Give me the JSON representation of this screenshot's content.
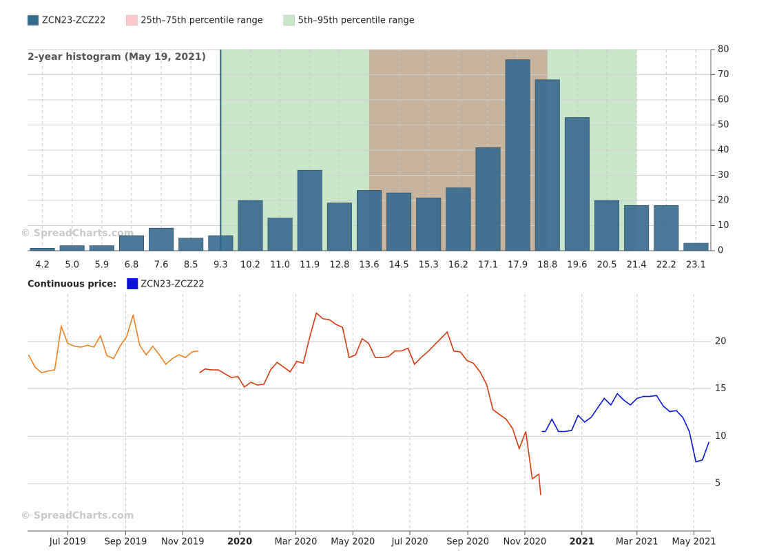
{
  "chart_data": [
    {
      "type": "bar",
      "title": "2-year histogram (May 19, 2021)",
      "watermark": "© SpreadCharts.com",
      "categories": [
        "4.2",
        "5.0",
        "5.9",
        "6.8",
        "7.6",
        "8.5",
        "9.3",
        "10.2",
        "11.0",
        "11.9",
        "12.8",
        "13.6",
        "14.5",
        "15.3",
        "16.2",
        "17.1",
        "17.9",
        "18.8",
        "19.6",
        "20.5",
        "21.4",
        "22.2",
        "23.1"
      ],
      "series": [
        {
          "name": "ZCN23-ZCZ22",
          "color": "#35698e",
          "values": [
            1,
            2,
            2,
            6,
            9,
            5,
            6,
            20,
            13,
            32,
            19,
            24,
            23,
            21,
            25,
            41,
            76,
            68,
            53,
            20,
            18,
            18,
            3
          ]
        }
      ],
      "bands": [
        {
          "name": "25th–75th percentile range",
          "color": "#ffc8c8",
          "from": 13.6,
          "to": 18.8
        },
        {
          "name": "5th–95th percentile range",
          "color": "#c8e6c8",
          "from": 9.3,
          "to": 21.4
        }
      ],
      "marker": 9.3,
      "ylim": [
        0,
        80
      ],
      "yticks": [
        0,
        10,
        20,
        30,
        40,
        50,
        60,
        70,
        80
      ],
      "grid": true
    },
    {
      "type": "line",
      "legend_title": "Continuous price:",
      "watermark": "© SpreadCharts.com",
      "xlim": [
        "2019-05-19",
        "2021-05-19"
      ],
      "xticks": [
        {
          "value": "2019-07",
          "label": "Jul 2019"
        },
        {
          "value": "2019-09",
          "label": "Sep 2019"
        },
        {
          "value": "2019-11",
          "label": "Nov 2019"
        },
        {
          "value": "2020-01",
          "label": "2020"
        },
        {
          "value": "2020-03",
          "label": "Mar 2020"
        },
        {
          "value": "2020-05",
          "label": "May 2020"
        },
        {
          "value": "2020-07",
          "label": "Jul 2020"
        },
        {
          "value": "2020-09",
          "label": "Sep 2020"
        },
        {
          "value": "2020-11",
          "label": "Nov 2020"
        },
        {
          "value": "2021-01",
          "label": "2021"
        },
        {
          "value": "2021-03",
          "label": "Mar 2021"
        },
        {
          "value": "2021-05",
          "label": "May 2021"
        }
      ],
      "ylim": [
        0,
        25
      ],
      "yticks": [
        5,
        10,
        15,
        20
      ],
      "grid": true,
      "series": [
        {
          "color": "#f07f1e",
          "x": [
            "2019-05-20",
            "2019-05-27",
            "2019-06-03",
            "2019-06-10",
            "2019-06-17",
            "2019-06-24",
            "2019-07-01",
            "2019-07-08",
            "2019-07-15",
            "2019-07-22",
            "2019-07-29",
            "2019-08-05",
            "2019-08-12",
            "2019-08-19",
            "2019-08-26",
            "2019-09-02",
            "2019-09-09",
            "2019-09-16",
            "2019-09-23",
            "2019-09-30",
            "2019-10-07",
            "2019-10-14",
            "2019-10-21",
            "2019-10-28",
            "2019-11-04",
            "2019-11-11",
            "2019-11-18"
          ],
          "values": [
            18.6,
            17.3,
            16.7,
            16.9,
            17.0,
            21.6,
            19.8,
            19.5,
            19.4,
            19.6,
            19.4,
            20.6,
            18.5,
            18.2,
            19.5,
            20.5,
            22.8,
            19.6,
            18.6,
            19.5,
            18.6,
            17.6,
            18.2,
            18.6,
            18.3,
            18.9,
            19.0
          ]
        },
        {
          "color": "#d93a0c",
          "x": [
            "2019-11-19",
            "2019-11-25",
            "2019-12-02",
            "2019-12-09",
            "2019-12-16",
            "2019-12-23",
            "2019-12-30",
            "2020-01-06",
            "2020-01-13",
            "2020-01-20",
            "2020-01-27",
            "2020-02-03",
            "2020-02-10",
            "2020-02-17",
            "2020-02-24",
            "2020-03-02",
            "2020-03-09",
            "2020-03-16",
            "2020-03-23",
            "2020-03-30",
            "2020-04-06",
            "2020-04-13",
            "2020-04-20",
            "2020-04-27",
            "2020-05-04",
            "2020-05-11",
            "2020-05-18",
            "2020-05-25",
            "2020-06-01",
            "2020-06-08",
            "2020-06-15",
            "2020-06-22",
            "2020-06-29",
            "2020-07-06",
            "2020-07-13",
            "2020-07-20",
            "2020-07-27",
            "2020-08-03",
            "2020-08-10",
            "2020-08-17",
            "2020-08-24",
            "2020-08-31",
            "2020-09-07",
            "2020-09-14",
            "2020-09-21",
            "2020-09-28",
            "2020-10-05",
            "2020-10-12",
            "2020-10-19",
            "2020-10-26",
            "2020-11-02",
            "2020-11-09",
            "2020-11-16",
            "2020-11-18"
          ],
          "values": [
            16.7,
            17.1,
            17.0,
            17.0,
            16.6,
            16.2,
            16.3,
            15.2,
            15.7,
            15.4,
            15.5,
            17.0,
            17.8,
            17.3,
            16.8,
            17.9,
            17.7,
            20.5,
            23.0,
            22.4,
            22.3,
            21.8,
            21.5,
            18.3,
            18.6,
            20.3,
            19.8,
            18.3,
            18.3,
            18.4,
            19.0,
            19.0,
            19.3,
            17.6,
            18.3,
            18.9,
            19.6,
            20.3,
            21.0,
            19.0,
            18.9,
            18.0,
            17.7,
            16.8,
            15.5,
            12.8,
            12.3,
            11.8,
            10.8,
            8.7,
            10.5,
            5.5,
            6.0,
            3.8
          ]
        },
        {
          "name": "ZCN23-ZCZ22",
          "color": "#0a14d9",
          "x": [
            "2020-11-19",
            "2020-11-23",
            "2020-11-30",
            "2020-12-07",
            "2020-12-14",
            "2020-12-21",
            "2020-12-28",
            "2021-01-04",
            "2021-01-11",
            "2021-01-18",
            "2021-01-25",
            "2021-02-01",
            "2021-02-08",
            "2021-02-15",
            "2021-02-22",
            "2021-03-01",
            "2021-03-08",
            "2021-03-15",
            "2021-03-22",
            "2021-03-29",
            "2021-04-05",
            "2021-04-12",
            "2021-04-19",
            "2021-04-26",
            "2021-05-03",
            "2021-05-10",
            "2021-05-17"
          ],
          "values": [
            10.5,
            10.5,
            11.8,
            10.5,
            10.5,
            10.6,
            12.2,
            11.5,
            12.0,
            13.0,
            14.0,
            13.3,
            14.5,
            13.8,
            13.3,
            14.0,
            14.2,
            14.2,
            14.3,
            13.2,
            12.6,
            12.7,
            12.0,
            10.5,
            7.3,
            7.5,
            9.4
          ]
        }
      ]
    }
  ]
}
